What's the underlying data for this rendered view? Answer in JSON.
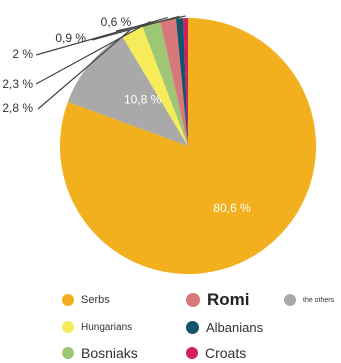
{
  "chart_data": {
    "type": "pie",
    "title": "",
    "slices": [
      {
        "label": "Serbs",
        "value": 80.6,
        "value_label": "80,6 %",
        "color": "#F2B01E"
      },
      {
        "label": "the others",
        "value": 10.8,
        "value_label": "10,8 %",
        "color": "#A9A9A9"
      },
      {
        "label": "Hungarians",
        "value": 2.8,
        "value_label": "2,8 %",
        "color": "#F6EC5A"
      },
      {
        "label": "Bosniaks",
        "value": 2.3,
        "value_label": "2,3 %",
        "color": "#9DC675"
      },
      {
        "label": "Romi",
        "value": 2.0,
        "value_label": "2 %",
        "color": "#D9787A"
      },
      {
        "label": "Albanians",
        "value": 0.9,
        "value_label": "0,9 %",
        "color": "#13566B"
      },
      {
        "label": "Croats",
        "value": 0.6,
        "value_label": "0,6 %",
        "color": "#D51F5B"
      }
    ],
    "legend": [
      {
        "label": "Serbs",
        "color": "#F2B01E"
      },
      {
        "label": "Romi",
        "color": "#D9787A"
      },
      {
        "label": "the others",
        "color": "#A9A9A9"
      },
      {
        "label": "Hungarians",
        "color": "#F6EC5A"
      },
      {
        "label": "Albanians",
        "color": "#13566B"
      },
      {
        "label": "Bosniaks",
        "color": "#9DC675"
      },
      {
        "label": "Croats",
        "color": "#D51F5B"
      }
    ],
    "legend_placement": "bottom"
  }
}
